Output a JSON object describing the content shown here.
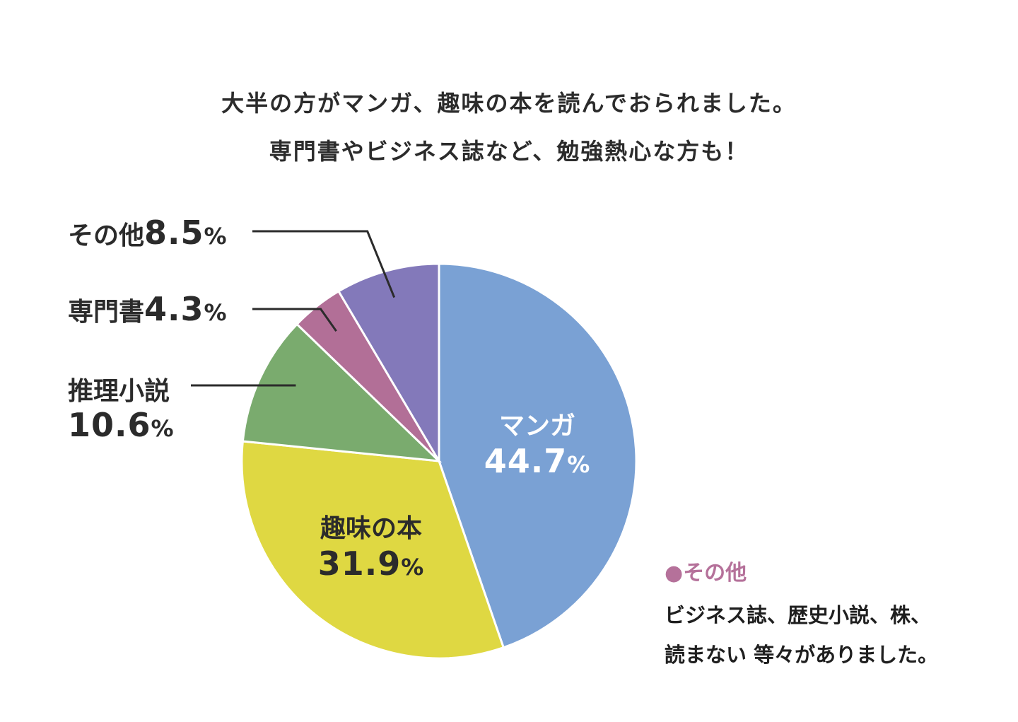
{
  "header": {
    "line1": "大半の方がマンガ、趣味の本を読んでおられました。",
    "line2": "専門書やビジネス誌など、勉強熱心な方も！"
  },
  "colors": {
    "manga": "#7aa1d4",
    "hobby": "#dfd842",
    "mystery": "#7aab6e",
    "specialist": "#b26f97",
    "other": "#8379ba",
    "text": "#2b2b2b",
    "note_accent": "#b5719a"
  },
  "chart_data": {
    "type": "pie",
    "categories": [
      "マンガ",
      "趣味の本",
      "推理小説",
      "専門書",
      "その他"
    ],
    "values": [
      44.7,
      31.9,
      10.6,
      4.3,
      8.5
    ],
    "unit": "%",
    "slice_labels": [
      {
        "name": "マンガ",
        "value": "44.7",
        "unit": "%"
      },
      {
        "name": "趣味の本",
        "value": "31.9",
        "unit": "%"
      },
      {
        "name": "推理小説",
        "value": "10.6",
        "unit": "%"
      },
      {
        "name": "専門書",
        "value": "4.3",
        "unit": "%"
      },
      {
        "name": "その他",
        "value": "8.5",
        "unit": "%"
      }
    ]
  },
  "note": {
    "bullet": "●",
    "title": "その他",
    "line1": "ビジネス誌、歴史小説、株、",
    "line2": "読まない 等々がありました。"
  }
}
